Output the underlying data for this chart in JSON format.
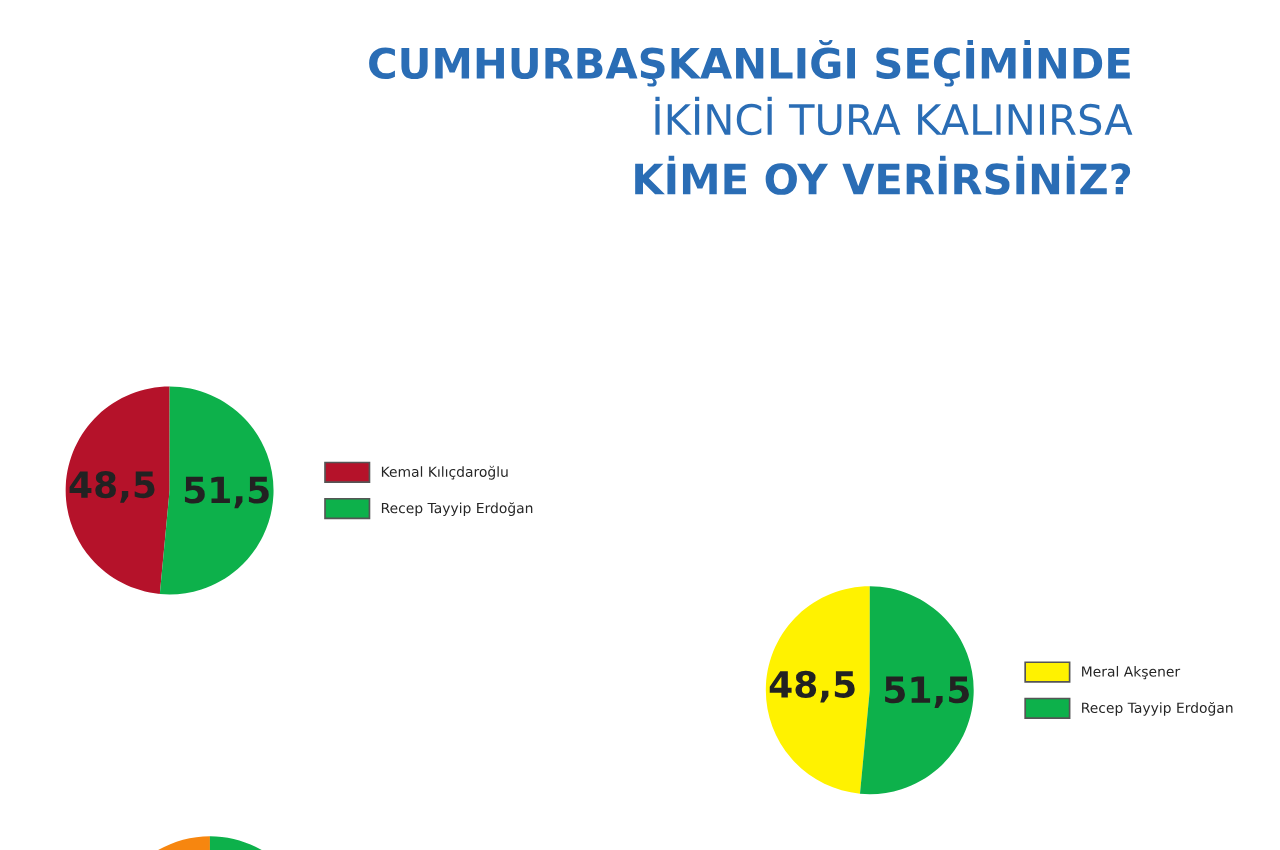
{
  "chart_data": [
    {
      "type": "pie",
      "title": "CUMHURBAŞKANLIĞI SEÇİMİNDE\nİKİNCİ TURA KALINIRSA\nKİME OY VERİRSİNİZ?",
      "categories": [
        "Kemal Kılıçdaroğlu",
        "Recep Tayyip Erdoğan"
      ],
      "values": [
        48.5,
        51.5
      ],
      "colors": [
        "#b5122a",
        "#0db14b"
      ],
      "value_labels": [
        "48,5",
        "51,5"
      ],
      "legend": "right"
    },
    {
      "type": "pie",
      "categories": [
        "Meral Akşener",
        "Recep Tayyip Erdoğan"
      ],
      "values": [
        48.5,
        51.5
      ],
      "colors": [
        "#fff200",
        "#0db14b"
      ],
      "value_labels": [
        "48,5",
        "51,5"
      ],
      "legend": "right"
    },
    {
      "type": "pie",
      "categories": [
        null,
        null
      ],
      "values": [
        50,
        50
      ],
      "colors": [
        "#f7860f",
        "#0db14b"
      ]
    }
  ]
}
